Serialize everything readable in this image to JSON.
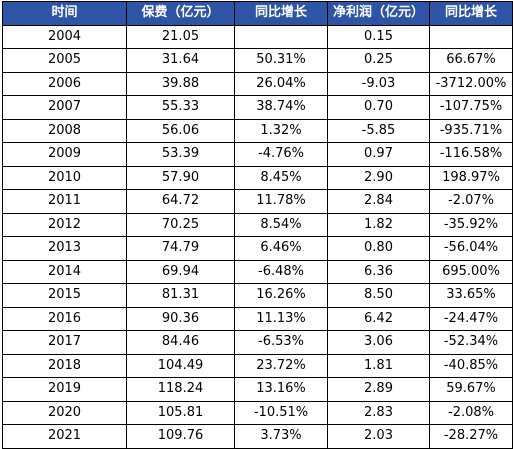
{
  "table": {
    "headers": [
      "时间",
      "保费（亿元）",
      "同比增长",
      "净利润（亿元）",
      "同比增长"
    ],
    "rows": [
      [
        "2004",
        "21.05",
        "",
        "0.15",
        ""
      ],
      [
        "2005",
        "31.64",
        "50.31%",
        "0.25",
        "66.67%"
      ],
      [
        "2006",
        "39.88",
        "26.04%",
        "-9.03",
        "-3712.00%"
      ],
      [
        "2007",
        "55.33",
        "38.74%",
        "0.70",
        "-107.75%"
      ],
      [
        "2008",
        "56.06",
        "1.32%",
        "-5.85",
        "-935.71%"
      ],
      [
        "2009",
        "53.39",
        "-4.76%",
        "0.97",
        "-116.58%"
      ],
      [
        "2010",
        "57.90",
        "8.45%",
        "2.90",
        "198.97%"
      ],
      [
        "2011",
        "64.72",
        "11.78%",
        "2.84",
        "-2.07%"
      ],
      [
        "2012",
        "70.25",
        "8.54%",
        "1.82",
        "-35.92%"
      ],
      [
        "2013",
        "74.79",
        "6.46%",
        "0.80",
        "-56.04%"
      ],
      [
        "2014",
        "69.94",
        "-6.48%",
        "6.36",
        "695.00%"
      ],
      [
        "2015",
        "81.31",
        "16.26%",
        "8.50",
        "33.65%"
      ],
      [
        "2016",
        "90.36",
        "11.13%",
        "6.42",
        "-24.47%"
      ],
      [
        "2017",
        "84.46",
        "-6.53%",
        "3.06",
        "-52.34%"
      ],
      [
        "2018",
        "104.49",
        "23.72%",
        "1.81",
        "-40.85%"
      ],
      [
        "2019",
        "118.24",
        "13.16%",
        "2.89",
        "59.67%"
      ],
      [
        "2020",
        "105.81",
        "-10.51%",
        "2.83",
        "-2.08%"
      ],
      [
        "2021",
        "109.76",
        "3.73%",
        "2.03",
        "-28.27%"
      ]
    ]
  },
  "colors": {
    "header_bg": "#2e54a6",
    "header_text": "#ffffff",
    "border": "#000000"
  }
}
